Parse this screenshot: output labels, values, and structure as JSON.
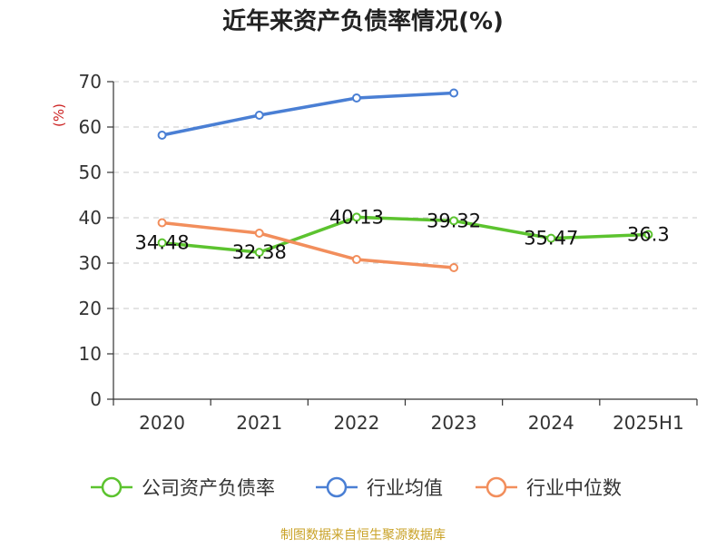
{
  "chart_data": {
    "type": "line",
    "title": "近年来资产负债率情况(%)",
    "ylabel": "(%)",
    "xlabel": "",
    "categories": [
      "2020",
      "2021",
      "2022",
      "2023",
      "2024",
      "2025H1"
    ],
    "ylim": [
      0,
      70
    ],
    "yticks": [
      0,
      10,
      20,
      30,
      40,
      50,
      60,
      70
    ],
    "grid": true,
    "legend_position": "bottom",
    "series": [
      {
        "name": "公司资产负债率",
        "color": "#5cc32f",
        "values": [
          34.48,
          32.38,
          40.13,
          39.32,
          35.47,
          36.3
        ],
        "labels": [
          "34.48",
          "32.38",
          "40.13",
          "39.32",
          "35.47",
          "36.3"
        ]
      },
      {
        "name": "行业均值",
        "color": "#4a7fd4",
        "values": [
          58.2,
          62.6,
          66.4,
          67.5,
          null,
          null
        ]
      },
      {
        "name": "行业中位数",
        "color": "#f28e5c",
        "values": [
          38.9,
          36.6,
          30.8,
          29.0,
          null,
          null
        ]
      }
    ]
  },
  "source_text": "制图数据来自恒生聚源数据库"
}
